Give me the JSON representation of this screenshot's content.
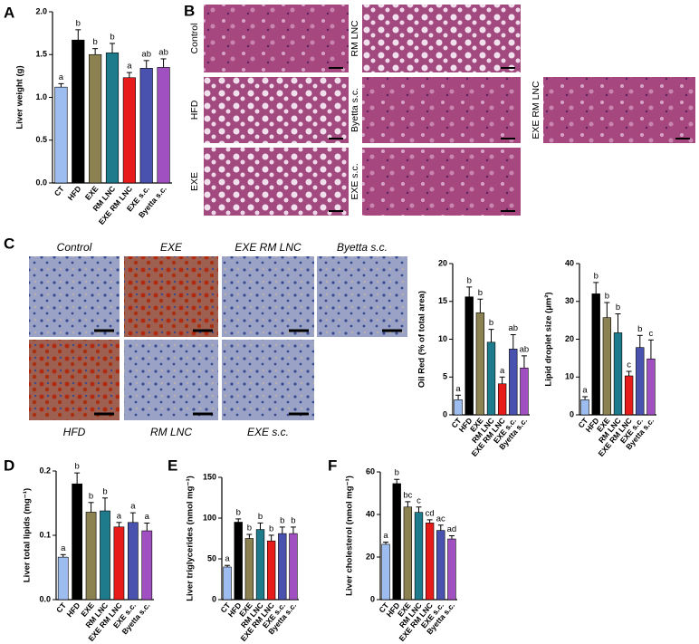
{
  "chart_data": [
    {
      "type": "bar",
      "panel_label": "A",
      "ylabel": "Liver weight (g)",
      "categories": [
        "CT",
        "HFD",
        "EXE",
        "RM LNC",
        "EXE RM LNC",
        "EXE s.c.",
        "Byetta s.c."
      ],
      "values": [
        1.12,
        1.67,
        1.5,
        1.52,
        1.23,
        1.34,
        1.35
      ],
      "errors": [
        0.04,
        0.12,
        0.07,
        0.11,
        0.06,
        0.09,
        0.1
      ],
      "annotations": [
        "a",
        "b",
        "b",
        "b",
        "a",
        "ab",
        "ab"
      ],
      "colors": [
        "#9dbdf0",
        "#000000",
        "#8c8150",
        "#1e7b8c",
        "#e81b1b",
        "#4a52b0",
        "#a050c0"
      ],
      "ylim": [
        0,
        2
      ],
      "yticks": [
        {
          "value": 0,
          "label": "0.0"
        },
        0.5,
        {
          "value": 1,
          "label": "1.0"
        },
        1.5,
        {
          "value": 2,
          "label": "2.0"
        }
      ]
    },
    {
      "type": "bar",
      "ylabel": "Oil Red (% of total area)",
      "categories": [
        "CT",
        "HFD",
        "EXE",
        "RM LNC",
        "EXE RM LNC",
        "EXE s.c.",
        "Byetta s.c."
      ],
      "values": [
        2.0,
        15.6,
        13.5,
        9.6,
        4.1,
        8.7,
        6.2
      ],
      "errors": [
        0.6,
        1.3,
        1.8,
        1.7,
        0.9,
        1.9,
        1.6
      ],
      "annotations": [
        "a",
        "b",
        "b",
        "b",
        "a",
        "ab",
        "ab"
      ],
      "colors": [
        "#9dbdf0",
        "#000000",
        "#8c8150",
        "#1e7b8c",
        "#e81b1b",
        "#4a52b0",
        "#a050c0"
      ],
      "ylim": [
        0,
        20
      ],
      "yticks": [
        0,
        5,
        10,
        15,
        20
      ]
    },
    {
      "type": "bar",
      "ylabel": "Lipid droplet size (µm²)",
      "categories": [
        "CT",
        "HFD",
        "EXE",
        "RM LNC",
        "EXE RM LNC",
        "EXE s.c.",
        "Byetta s.c."
      ],
      "values": [
        4,
        32,
        25.7,
        21.7,
        10.3,
        17.8,
        14.8
      ],
      "errors": [
        0.8,
        3,
        4,
        5,
        1.2,
        3.2,
        5
      ],
      "annotations": [
        "a",
        "b",
        "b",
        "b",
        "c",
        "b",
        "c"
      ],
      "colors": [
        "#9dbdf0",
        "#000000",
        "#8c8150",
        "#1e7b8c",
        "#e81b1b",
        "#4a52b0",
        "#a050c0"
      ],
      "ylim": [
        0,
        40
      ],
      "yticks": [
        0,
        10,
        20,
        30,
        40
      ]
    },
    {
      "type": "bar",
      "panel_label": "D",
      "ylabel": "Liver total lipids (mg⁻¹)",
      "categories": [
        "CT",
        "HFD",
        "EXE",
        "RM LNC",
        "EXE RM LNC",
        "EXE s.c.",
        "Byetta s.c."
      ],
      "values": [
        0.066,
        0.18,
        0.136,
        0.138,
        0.113,
        0.12,
        0.107
      ],
      "errors": [
        0.004,
        0.017,
        0.015,
        0.02,
        0.007,
        0.015,
        0.012
      ],
      "annotations": [
        "a",
        "b",
        "b",
        "b",
        "a",
        "a",
        "a"
      ],
      "colors": [
        "#9dbdf0",
        "#000000",
        "#8c8150",
        "#1e7b8c",
        "#e81b1b",
        "#4a52b0",
        "#a050c0"
      ],
      "ylim": [
        0,
        0.2
      ],
      "yticks": [
        {
          "value": 0,
          "label": "0.0"
        },
        0.1,
        0.2
      ]
    },
    {
      "type": "bar",
      "panel_label": "E",
      "ylabel": "Liver triglycerides (nmol mg⁻¹)",
      "categories": [
        "CT",
        "HFD",
        "EXE",
        "RM LNC",
        "EXE RM LNC",
        "EXE s.c.",
        "Byetta s.c."
      ],
      "values": [
        40,
        95,
        75,
        86,
        72,
        81,
        81
      ],
      "errors": [
        2,
        4,
        5,
        8,
        7,
        8,
        8
      ],
      "annotations": [
        "a",
        "b",
        "b",
        "b",
        "b",
        "b",
        "b"
      ],
      "colors": [
        "#9dbdf0",
        "#000000",
        "#8c8150",
        "#1e7b8c",
        "#e81b1b",
        "#4a52b0",
        "#a050c0"
      ],
      "ylim": [
        0,
        150
      ],
      "yticks": [
        0,
        50,
        100,
        150
      ]
    },
    {
      "type": "bar",
      "panel_label": "F",
      "ylabel": "Liver cholesterol (nmol mg⁻¹)",
      "categories": [
        "CT",
        "HFD",
        "EXE",
        "RM LNC",
        "EXE RM LNC",
        "EXE s.c.",
        "Byetta s.c."
      ],
      "values": [
        26,
        54.5,
        43.5,
        41,
        36,
        32.5,
        28.5
      ],
      "errors": [
        1,
        2,
        2.5,
        2.5,
        1.5,
        2.5,
        1.5
      ],
      "annotations": [
        "a",
        "b",
        "bc",
        "c",
        "cd",
        "ac",
        "ad"
      ],
      "colors": [
        "#9dbdf0",
        "#000000",
        "#8c8150",
        "#1e7b8c",
        "#e81b1b",
        "#4a52b0",
        "#a050c0"
      ],
      "ylim": [
        0,
        60
      ],
      "yticks": [
        0,
        20,
        40,
        60
      ]
    }
  ],
  "histology_b": {
    "panel_label": "B",
    "labels": [
      "Control",
      "RM LNC",
      "HFD",
      "Byetta s.c.",
      "EXE RM LNC",
      "EXE",
      "EXE s.c."
    ]
  },
  "histology_c": {
    "panel_label": "C",
    "labels": [
      "Control",
      "EXE",
      "EXE RM LNC",
      "Byetta s.c.",
      "HFD",
      "RM LNC",
      "EXE s.c."
    ]
  }
}
